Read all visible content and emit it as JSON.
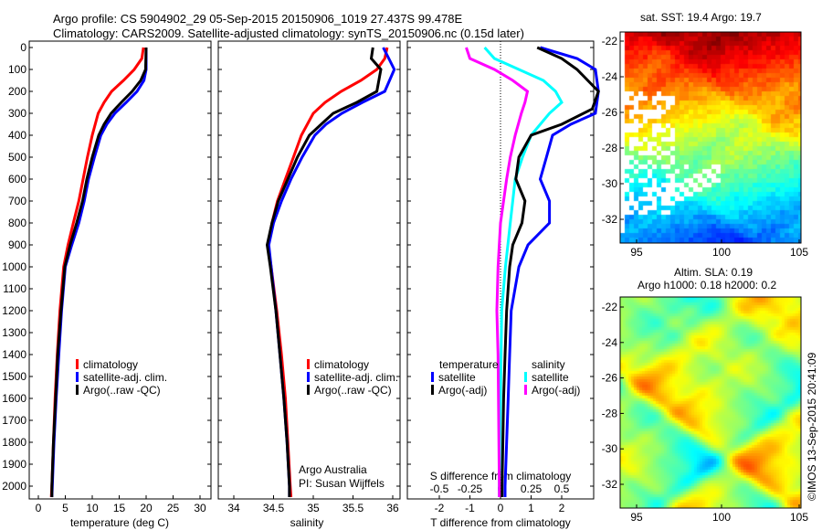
{
  "title_line1": "Argo profile: CS 5904902_29 05-Sep-2015 20150906_1019 27.437S 99.478E",
  "title_line2": "Climatology: CARS2009. Satellite-adjusted climatology: synTS_20150906.nc (0.15d later)",
  "colors": {
    "climatology": "#ff0000",
    "satellite": "#0000ff",
    "argo": "#000000",
    "s_satellite": "#00ffff",
    "s_argo": "#ff00ff"
  },
  "chart_data": [
    {
      "type": "line",
      "name": "temperature",
      "xlabel": "temperature (deg C)",
      "ylabel": "",
      "xlim": [
        -2,
        31
      ],
      "ylim": [
        2060,
        -30
      ],
      "xticks": [
        "0",
        "5",
        "10",
        "15",
        "20",
        "25",
        "30"
      ],
      "yticks": [
        "0",
        "100",
        "200",
        "300",
        "400",
        "500",
        "600",
        "700",
        "800",
        "900",
        "1000",
        "1100",
        "1200",
        "1300",
        "1400",
        "1500",
        "1600",
        "1700",
        "1800",
        "1900",
        "2000"
      ],
      "legend": [
        "climatology",
        "satellite-adj. clim.",
        "Argo(..raw -QC)"
      ],
      "series": [
        {
          "name": "climatology",
          "points": [
            [
              0,
              19.5
            ],
            [
              50,
              19.2
            ],
            [
              100,
              17.8
            ],
            [
              150,
              15.8
            ],
            [
              200,
              13.6
            ],
            [
              250,
              12.2
            ],
            [
              300,
              11.1
            ],
            [
              400,
              10
            ],
            [
              500,
              9.1
            ],
            [
              600,
              8.3
            ],
            [
              700,
              7.5
            ],
            [
              800,
              6.5
            ],
            [
              900,
              5.5
            ],
            [
              1000,
              4.7
            ],
            [
              1200,
              4
            ],
            [
              1400,
              3.5
            ],
            [
              1600,
              3.1
            ],
            [
              1800,
              2.8
            ],
            [
              2000,
              2.5
            ],
            [
              2050,
              2.4
            ]
          ]
        },
        {
          "name": "satellite-adj. clim.",
          "points": [
            [
              0,
              20
            ],
            [
              100,
              20
            ],
            [
              150,
              19.6
            ],
            [
              200,
              18.3
            ],
            [
              250,
              16.3
            ],
            [
              300,
              14.2
            ],
            [
              350,
              12.7
            ],
            [
              400,
              11.6
            ],
            [
              500,
              10.4
            ],
            [
              600,
              9.3
            ],
            [
              700,
              8.5
            ],
            [
              800,
              7.5
            ],
            [
              900,
              6.2
            ],
            [
              1000,
              5
            ],
            [
              1200,
              4.3
            ],
            [
              1400,
              3.8
            ],
            [
              1600,
              3.3
            ],
            [
              1800,
              2.9
            ],
            [
              2000,
              2.6
            ],
            [
              2050,
              2.5
            ]
          ]
        },
        {
          "name": "Argo(..raw -QC)",
          "points": [
            [
              0,
              20
            ],
            [
              100,
              19.9
            ],
            [
              150,
              19
            ],
            [
              200,
              17.4
            ],
            [
              250,
              15.4
            ],
            [
              300,
              13.5
            ],
            [
              350,
              12.2
            ],
            [
              400,
              11.2
            ],
            [
              500,
              10
            ],
            [
              600,
              9
            ],
            [
              700,
              8.2
            ],
            [
              800,
              7.1
            ],
            [
              900,
              5.9
            ],
            [
              1000,
              4.9
            ],
            [
              1200,
              4.2
            ],
            [
              1400,
              3.6
            ],
            [
              1600,
              3.2
            ],
            [
              1800,
              2.8
            ],
            [
              2000,
              2.5
            ],
            [
              2050,
              2.5
            ]
          ]
        }
      ]
    },
    {
      "type": "line",
      "name": "salinity",
      "xlabel": "salinity",
      "xlim": [
        33.8,
        36.1
      ],
      "ylim": [
        2060,
        -30
      ],
      "xticks": [
        "34",
        "34.5",
        "35",
        "35.5",
        "36"
      ],
      "legend": [
        "climatology",
        "satellite-adj. clim.",
        "Argo(..raw -QC)"
      ],
      "annotation": [
        "Argo Australia",
        "PI: Susan Wijffels"
      ],
      "series": [
        {
          "name": "climatology",
          "points": [
            [
              0,
              35.93
            ],
            [
              50,
              35.9
            ],
            [
              100,
              35.8
            ],
            [
              150,
              35.6
            ],
            [
              200,
              35.35
            ],
            [
              250,
              35.15
            ],
            [
              300,
              35
            ],
            [
              400,
              34.85
            ],
            [
              500,
              34.75
            ],
            [
              600,
              34.65
            ],
            [
              700,
              34.55
            ],
            [
              800,
              34.48
            ],
            [
              900,
              34.43
            ],
            [
              1000,
              34.47
            ],
            [
              1200,
              34.54
            ],
            [
              1400,
              34.6
            ],
            [
              1600,
              34.65
            ],
            [
              1800,
              34.68
            ],
            [
              2000,
              34.71
            ],
            [
              2050,
              34.72
            ]
          ]
        },
        {
          "name": "satellite-adj. clim.",
          "points": [
            [
              0,
              35.88
            ],
            [
              50,
              35.95
            ],
            [
              100,
              36.02
            ],
            [
              200,
              35.9
            ],
            [
              250,
              35.62
            ],
            [
              300,
              35.36
            ],
            [
              350,
              35.16
            ],
            [
              400,
              35.02
            ],
            [
              500,
              34.86
            ],
            [
              600,
              34.72
            ],
            [
              700,
              34.6
            ],
            [
              800,
              34.5
            ],
            [
              900,
              34.44
            ],
            [
              1000,
              34.47
            ],
            [
              1200,
              34.53
            ],
            [
              1400,
              34.58
            ],
            [
              1600,
              34.63
            ],
            [
              1800,
              34.67
            ],
            [
              2000,
              34.7
            ],
            [
              2050,
              34.7
            ]
          ]
        },
        {
          "name": "Argo(..raw -QC)",
          "points": [
            [
              0,
              35.75
            ],
            [
              50,
              35.73
            ],
            [
              100,
              35.85
            ],
            [
              200,
              35.8
            ],
            [
              250,
              35.55
            ],
            [
              300,
              35.25
            ],
            [
              350,
              35.1
            ],
            [
              400,
              34.95
            ],
            [
              500,
              34.8
            ],
            [
              600,
              34.68
            ],
            [
              700,
              34.56
            ],
            [
              800,
              34.48
            ],
            [
              900,
              34.42
            ],
            [
              1000,
              34.46
            ],
            [
              1200,
              34.53
            ],
            [
              1400,
              34.58
            ],
            [
              1600,
              34.63
            ],
            [
              1800,
              34.67
            ],
            [
              2000,
              34.7
            ],
            [
              2050,
              34.7
            ]
          ]
        }
      ]
    },
    {
      "type": "line",
      "name": "differences",
      "xlabel": "T difference from climatology",
      "x2label": "S difference from climatology",
      "xlim": [
        -3,
        3.1
      ],
      "ylim": [
        2060,
        -30
      ],
      "xticks": [
        "-2",
        "-1",
        "0",
        "1",
        "2"
      ],
      "x2ticks": [
        "-0.5",
        "-0.25",
        "0",
        "0.25",
        "0.5"
      ],
      "legend_temperature": {
        "title": "temperature",
        "items": [
          "satellite",
          "Argo(-adj)"
        ]
      },
      "legend_salinity": {
        "title": "salinity",
        "items": [
          "satellite",
          "Argo(-adj)"
        ]
      },
      "series": [
        {
          "name": "T satellite",
          "points": [
            [
              0,
              1.3
            ],
            [
              50,
              2.5
            ],
            [
              100,
              3.1
            ],
            [
              200,
              3.2
            ],
            [
              300,
              3.1
            ],
            [
              350,
              2.3
            ],
            [
              400,
              1.7
            ],
            [
              500,
              1.5
            ],
            [
              600,
              1.3
            ],
            [
              700,
              1.6
            ],
            [
              800,
              1.6
            ],
            [
              900,
              0.9
            ],
            [
              1000,
              0.6
            ],
            [
              1200,
              0.35
            ],
            [
              1400,
              0.3
            ],
            [
              1600,
              0.25
            ],
            [
              1800,
              0.2
            ],
            [
              2000,
              0.15
            ],
            [
              2050,
              0.15
            ]
          ]
        },
        {
          "name": "T Argo(-adj)",
          "points": [
            [
              0,
              1.2
            ],
            [
              50,
              2
            ],
            [
              100,
              2.5
            ],
            [
              200,
              3.2
            ],
            [
              280,
              3
            ],
            [
              350,
              2
            ],
            [
              400,
              1
            ],
            [
              500,
              0.6
            ],
            [
              600,
              0.5
            ],
            [
              700,
              0.8
            ],
            [
              800,
              0.7
            ],
            [
              900,
              0.4
            ],
            [
              1000,
              0.3
            ],
            [
              1200,
              0.2
            ],
            [
              1400,
              0.15
            ],
            [
              1600,
              0.1
            ],
            [
              2000,
              0.05
            ],
            [
              2050,
              0.05
            ]
          ]
        },
        {
          "name": "S satellite",
          "points": [
            [
              0,
              -0.13
            ],
            [
              50,
              -0.05
            ],
            [
              100,
              0.15
            ],
            [
              150,
              0.35
            ],
            [
              200,
              0.45
            ],
            [
              250,
              0.5
            ],
            [
              300,
              0.4
            ],
            [
              400,
              0.25
            ],
            [
              500,
              0.18
            ],
            [
              600,
              0.12
            ],
            [
              800,
              0.08
            ],
            [
              1000,
              0.04
            ],
            [
              1200,
              0.01
            ],
            [
              1600,
              0
            ],
            [
              2000,
              -0.01
            ],
            [
              2050,
              -0.01
            ]
          ]
        },
        {
          "name": "S Argo(-adj)",
          "points": [
            [
              0,
              -0.28
            ],
            [
              50,
              -0.25
            ],
            [
              100,
              -0.05
            ],
            [
              150,
              0.1
            ],
            [
              200,
              0.22
            ],
            [
              250,
              0.2
            ],
            [
              300,
              0.17
            ],
            [
              400,
              0.12
            ],
            [
              500,
              0.08
            ],
            [
              600,
              0.05
            ],
            [
              800,
              0
            ],
            [
              1000,
              -0.02
            ],
            [
              1200,
              -0.03
            ],
            [
              1400,
              -0.02
            ],
            [
              2000,
              -0.01
            ],
            [
              2050,
              -0.01
            ]
          ]
        }
      ]
    },
    {
      "type": "heatmap",
      "name": "sst-map",
      "title": "sat. SST: 19.4  Argo: 19.7",
      "xticks": [
        "95",
        "100",
        "105"
      ],
      "yticks": [
        "-22",
        "-24",
        "-26",
        "-28",
        "-30",
        "-32"
      ]
    },
    {
      "type": "heatmap",
      "name": "sla-map",
      "title_line1": "Altim. SLA: 0.19",
      "title_line2": "Argo h1000: 0.18 h2000: 0.2",
      "xticks": [
        "95",
        "100",
        "105"
      ],
      "yticks": [
        "-22",
        "-24",
        "-26",
        "-28",
        "-30",
        "-32"
      ]
    }
  ],
  "credit": "©IMOS 13-Sep-2015 20:41:09"
}
